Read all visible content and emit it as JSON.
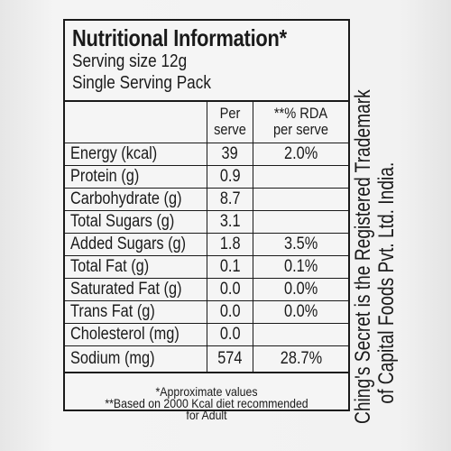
{
  "label": {
    "title": "Nutritional Information*",
    "serving_size": "Serving size 12g",
    "pack": "Single Serving Pack",
    "columns": {
      "per_serve": [
        "Per",
        "serve"
      ],
      "rda": [
        "**% RDA",
        "per serve"
      ]
    },
    "rows": [
      {
        "name": "Energy (kcal)",
        "per": "39",
        "rda": "2.0%"
      },
      {
        "name": "Protein (g)",
        "per": "0.9",
        "rda": ""
      },
      {
        "name": "Carbohydrate (g)",
        "per": "8.7",
        "rda": ""
      },
      {
        "name": "Total Sugars (g)",
        "per": "3.1",
        "rda": ""
      },
      {
        "name": "Added Sugars (g)",
        "per": "1.8",
        "rda": "3.5%"
      },
      {
        "name": "Total Fat (g)",
        "per": "0.1",
        "rda": "0.1%"
      },
      {
        "name": "Saturated Fat (g)",
        "per": "0.0",
        "rda": "0.0%"
      },
      {
        "name": "Trans Fat (g)",
        "per": "0.0",
        "rda": "0.0%"
      },
      {
        "name": "Cholesterol (mg)",
        "per": "0.0",
        "rda": ""
      },
      {
        "name": "Sodium (mg)",
        "per": "574",
        "rda": "28.7%"
      }
    ],
    "footnotes": [
      "*Approximate values",
      "**Based on 2000 Kcal diet recommended",
      "for Adult"
    ]
  },
  "side_text": {
    "line1": "Ching's Secret is the Registered Trademark",
    "line2": "of Capital Foods Pvt. Ltd. India."
  }
}
